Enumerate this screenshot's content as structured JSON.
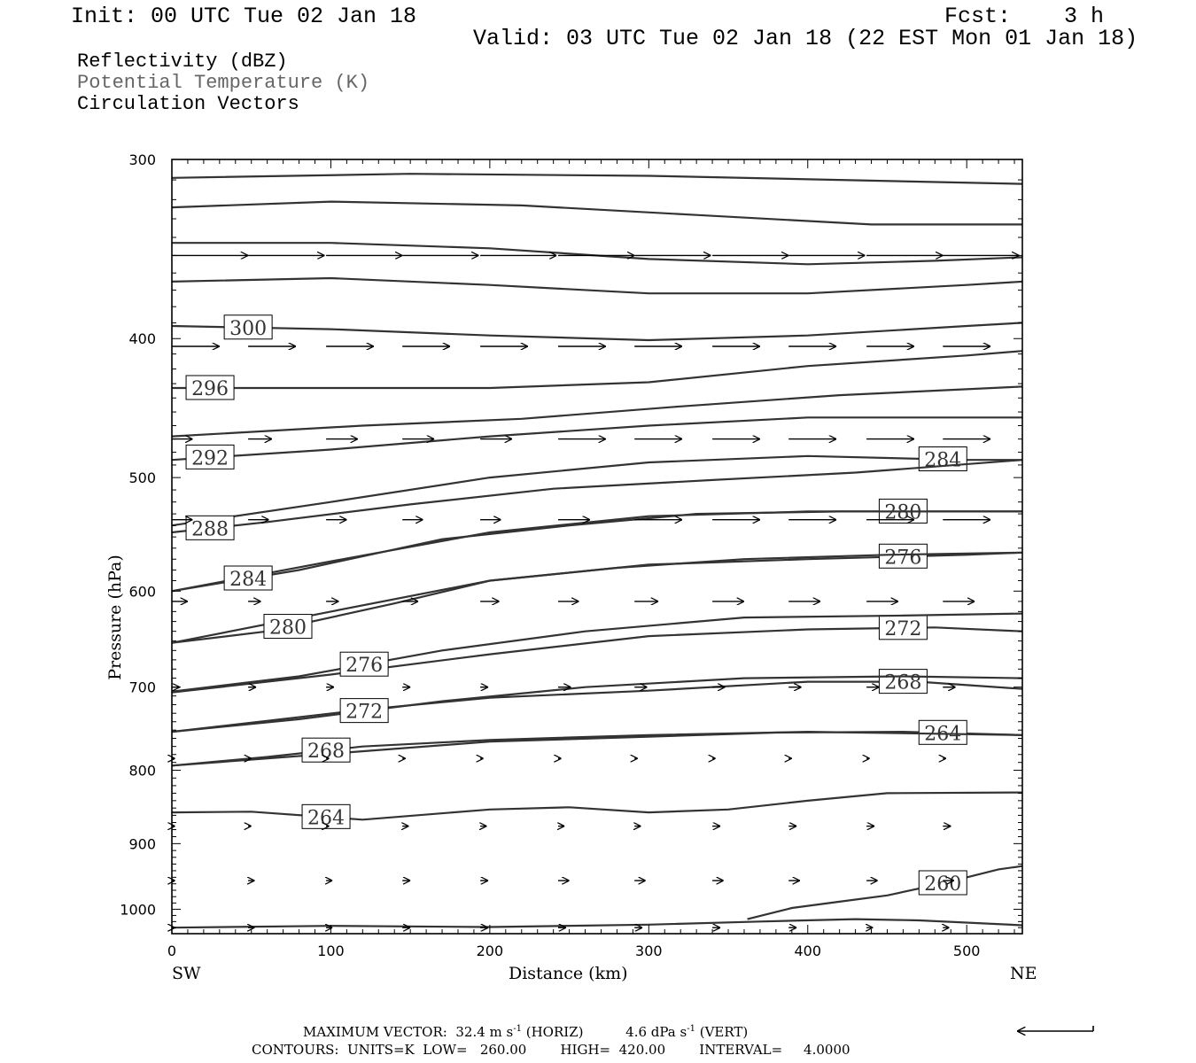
{
  "header": {
    "init": "Init: 00 UTC Tue 02 Jan 18",
    "fcst": "Fcst:    3 h",
    "valid": "Valid: 03 UTC Tue 02 Jan 18 (22 EST Mon 01 Jan 18)"
  },
  "legend": {
    "line1": "Reflectivity (dBZ)",
    "line2": "Potential Temperature (K)",
    "line3": "Circulation Vectors"
  },
  "colors": {
    "contour": "#333333",
    "vector": "#000000",
    "frame": "#000000"
  },
  "chart_data": {
    "type": "line",
    "xlabel": "Distance (km)",
    "ylabel": "Pressure (hPa)",
    "xlim": [
      0,
      535
    ],
    "ylim": [
      1040,
      300
    ],
    "y_scale": "log",
    "x_ticks": [
      0,
      100,
      200,
      300,
      400,
      500
    ],
    "y_ticks": [
      300,
      400,
      500,
      600,
      700,
      800,
      900,
      1000
    ],
    "x_end_labels": {
      "left": "SW",
      "right": "NE"
    },
    "series": [
      {
        "label": "",
        "points": [
          [
            0,
            309
          ],
          [
            150,
            307
          ],
          [
            300,
            308
          ],
          [
            420,
            310
          ],
          [
            535,
            312
          ]
        ]
      },
      {
        "label": "",
        "points": [
          [
            0,
            324
          ],
          [
            100,
            321
          ],
          [
            220,
            323
          ],
          [
            330,
            328
          ],
          [
            440,
            333
          ],
          [
            535,
            333
          ]
        ]
      },
      {
        "label": "",
        "points": [
          [
            0,
            343
          ],
          [
            100,
            343
          ],
          [
            200,
            346
          ],
          [
            300,
            352
          ],
          [
            400,
            355
          ],
          [
            480,
            353
          ],
          [
            535,
            351
          ]
        ]
      },
      {
        "label": "",
        "points": [
          [
            0,
            365
          ],
          [
            100,
            363
          ],
          [
            200,
            367
          ],
          [
            300,
            372
          ],
          [
            400,
            372
          ],
          [
            500,
            367
          ],
          [
            535,
            365
          ]
        ]
      },
      {
        "label": "300",
        "label_x": 48,
        "points": [
          [
            0,
            392
          ],
          [
            100,
            394
          ],
          [
            200,
            398
          ],
          [
            300,
            401
          ],
          [
            400,
            398
          ],
          [
            500,
            392
          ],
          [
            535,
            390
          ]
        ]
      },
      {
        "label": "296",
        "label_x": 24,
        "points": [
          [
            0,
            433
          ],
          [
            100,
            433
          ],
          [
            200,
            433
          ],
          [
            300,
            429
          ],
          [
            400,
            418
          ],
          [
            500,
            411
          ],
          [
            535,
            408
          ]
        ]
      },
      {
        "label": "",
        "points": [
          [
            0,
            468
          ],
          [
            120,
            460
          ],
          [
            220,
            455
          ],
          [
            320,
            446
          ],
          [
            420,
            438
          ],
          [
            535,
            432
          ]
        ]
      },
      {
        "label": "292",
        "label_x": 24,
        "points": [
          [
            0,
            486
          ],
          [
            100,
            478
          ],
          [
            200,
            468
          ],
          [
            300,
            460
          ],
          [
            400,
            454
          ],
          [
            480,
            454
          ],
          [
            535,
            454
          ]
        ]
      },
      {
        "label": "284",
        "label_x": 485,
        "points": [
          [
            0,
            540
          ],
          [
            100,
            520
          ],
          [
            200,
            500
          ],
          [
            300,
            488
          ],
          [
            400,
            483
          ],
          [
            500,
            486
          ],
          [
            535,
            486
          ]
        ]
      },
      {
        "label": "288",
        "label_x": 24,
        "points": [
          [
            0,
            546
          ],
          [
            60,
            537
          ],
          [
            150,
            522
          ],
          [
            240,
            509
          ],
          [
            340,
            502
          ],
          [
            430,
            496
          ],
          [
            535,
            486
          ]
        ]
      },
      {
        "label": "280",
        "label_x": 460,
        "points": [
          [
            0,
            600
          ],
          [
            100,
            572
          ],
          [
            200,
            546
          ],
          [
            300,
            532
          ],
          [
            400,
            528
          ],
          [
            535,
            528
          ]
        ]
      },
      {
        "label": "284",
        "label_x": 48,
        "points": [
          [
            0,
            600
          ],
          [
            80,
            580
          ],
          [
            170,
            552
          ],
          [
            250,
            540
          ],
          [
            330,
            530
          ],
          [
            420,
            528
          ],
          [
            535,
            528
          ]
        ]
      },
      {
        "label": "276",
        "label_x": 460,
        "points": [
          [
            0,
            652
          ],
          [
            100,
            620
          ],
          [
            200,
            590
          ],
          [
            300,
            575
          ],
          [
            400,
            570
          ],
          [
            500,
            566
          ],
          [
            535,
            564
          ]
        ]
      },
      {
        "label": "280",
        "label_x": 73,
        "points": [
          [
            0,
            652
          ],
          [
            60,
            640
          ],
          [
            140,
            612
          ],
          [
            200,
            590
          ],
          [
            280,
            578
          ],
          [
            360,
            570
          ],
          [
            450,
            566
          ],
          [
            535,
            564
          ]
        ]
      },
      {
        "label": "272",
        "label_x": 460,
        "points": [
          [
            0,
            706
          ],
          [
            100,
            686
          ],
          [
            200,
            664
          ],
          [
            300,
            645
          ],
          [
            400,
            638
          ],
          [
            480,
            636
          ],
          [
            535,
            640
          ]
        ]
      },
      {
        "label": "276",
        "label_x": 121,
        "points": [
          [
            0,
            705
          ],
          [
            80,
            688
          ],
          [
            170,
            660
          ],
          [
            260,
            640
          ],
          [
            360,
            626
          ],
          [
            460,
            624
          ],
          [
            535,
            622
          ]
        ]
      },
      {
        "label": "268",
        "label_x": 460,
        "points": [
          [
            0,
            752
          ],
          [
            120,
            726
          ],
          [
            200,
            712
          ],
          [
            300,
            704
          ],
          [
            400,
            694
          ],
          [
            470,
            694
          ],
          [
            535,
            702
          ]
        ]
      },
      {
        "label": "272",
        "label_x": 121,
        "points": [
          [
            0,
            752
          ],
          [
            80,
            737
          ],
          [
            170,
            716
          ],
          [
            260,
            700
          ],
          [
            360,
            690
          ],
          [
            460,
            688
          ],
          [
            535,
            690
          ]
        ]
      },
      {
        "label": "264",
        "label_x": 485,
        "points": [
          [
            0,
            794
          ],
          [
            100,
            779
          ],
          [
            200,
            764
          ],
          [
            300,
            758
          ],
          [
            380,
            753
          ],
          [
            460,
            752
          ],
          [
            535,
            756
          ]
        ]
      },
      {
        "label": "268",
        "label_x": 97,
        "points": [
          [
            0,
            794
          ],
          [
            60,
            783
          ],
          [
            120,
            770
          ],
          [
            200,
            762
          ],
          [
            300,
            756
          ],
          [
            400,
            752
          ],
          [
            535,
            756
          ]
        ]
      },
      {
        "label": "264",
        "label_x": 97,
        "points": [
          [
            0,
            856
          ],
          [
            50,
            855
          ],
          [
            120,
            866
          ],
          [
            200,
            852
          ],
          [
            250,
            849
          ],
          [
            300,
            856
          ],
          [
            350,
            852
          ],
          [
            400,
            840
          ],
          [
            450,
            830
          ],
          [
            535,
            829
          ]
        ]
      },
      {
        "label": "260",
        "label_x": 485,
        "points": [
          [
            362,
            1016
          ],
          [
            390,
            998
          ],
          [
            420,
            988
          ],
          [
            450,
            978
          ],
          [
            480,
            962
          ],
          [
            500,
            950
          ],
          [
            520,
            938
          ],
          [
            535,
            933
          ]
        ]
      },
      {
        "label": "",
        "points": [
          [
            0,
            1030
          ],
          [
            100,
            1027
          ],
          [
            200,
            1029
          ],
          [
            300,
            1025
          ],
          [
            370,
            1020
          ],
          [
            430,
            1016
          ],
          [
            470,
            1018
          ],
          [
            535,
            1026
          ]
        ]
      }
    ],
    "vectors": {
      "pressure_levels": [
        350,
        405,
        470,
        535,
        610,
        700,
        785,
        875,
        955,
        1030
      ],
      "x_positions": [
        0,
        48,
        97,
        145,
        194,
        243,
        291,
        340,
        388,
        437,
        485
      ],
      "u_km": [
        [
          48,
          48,
          48,
          48,
          48,
          48,
          48,
          48,
          48,
          48,
          48
        ],
        [
          30,
          30,
          30,
          30,
          30,
          30,
          30,
          30,
          30,
          30,
          30
        ],
        [
          13,
          15,
          20,
          20,
          20,
          30,
          30,
          30,
          30,
          30,
          30
        ],
        [
          13,
          13,
          13,
          13,
          13,
          20,
          30,
          30,
          30,
          30,
          30
        ],
        [
          10,
          8,
          8,
          10,
          12,
          13,
          15,
          20,
          20,
          20,
          20
        ],
        [
          5,
          5,
          5,
          5,
          5,
          8,
          8,
          8,
          8,
          8,
          8
        ],
        [
          2,
          2,
          2,
          2,
          2,
          2,
          2,
          2,
          2,
          2,
          2
        ],
        [
          2,
          2,
          2,
          4,
          4,
          4,
          4,
          5,
          5,
          5,
          5
        ],
        [
          2,
          4,
          4,
          5,
          5,
          7,
          7,
          7,
          7,
          7,
          7
        ],
        [
          2,
          4,
          4,
          5,
          5,
          5,
          5,
          5,
          5,
          4,
          4
        ]
      ]
    }
  },
  "footer": {
    "line1_a": "MAXIMUM VECTOR:  32.4 m s",
    "line1_sup1": "-1",
    "line1_b": " (HORIZ)          4.6 dPa s",
    "line1_sup2": "-1",
    "line1_c": " (VERT)",
    "line2": "CONTOURS:  UNITS=K  LOW=   260.00        HIGH=  420.00        INTERVAL=     4.0000"
  }
}
